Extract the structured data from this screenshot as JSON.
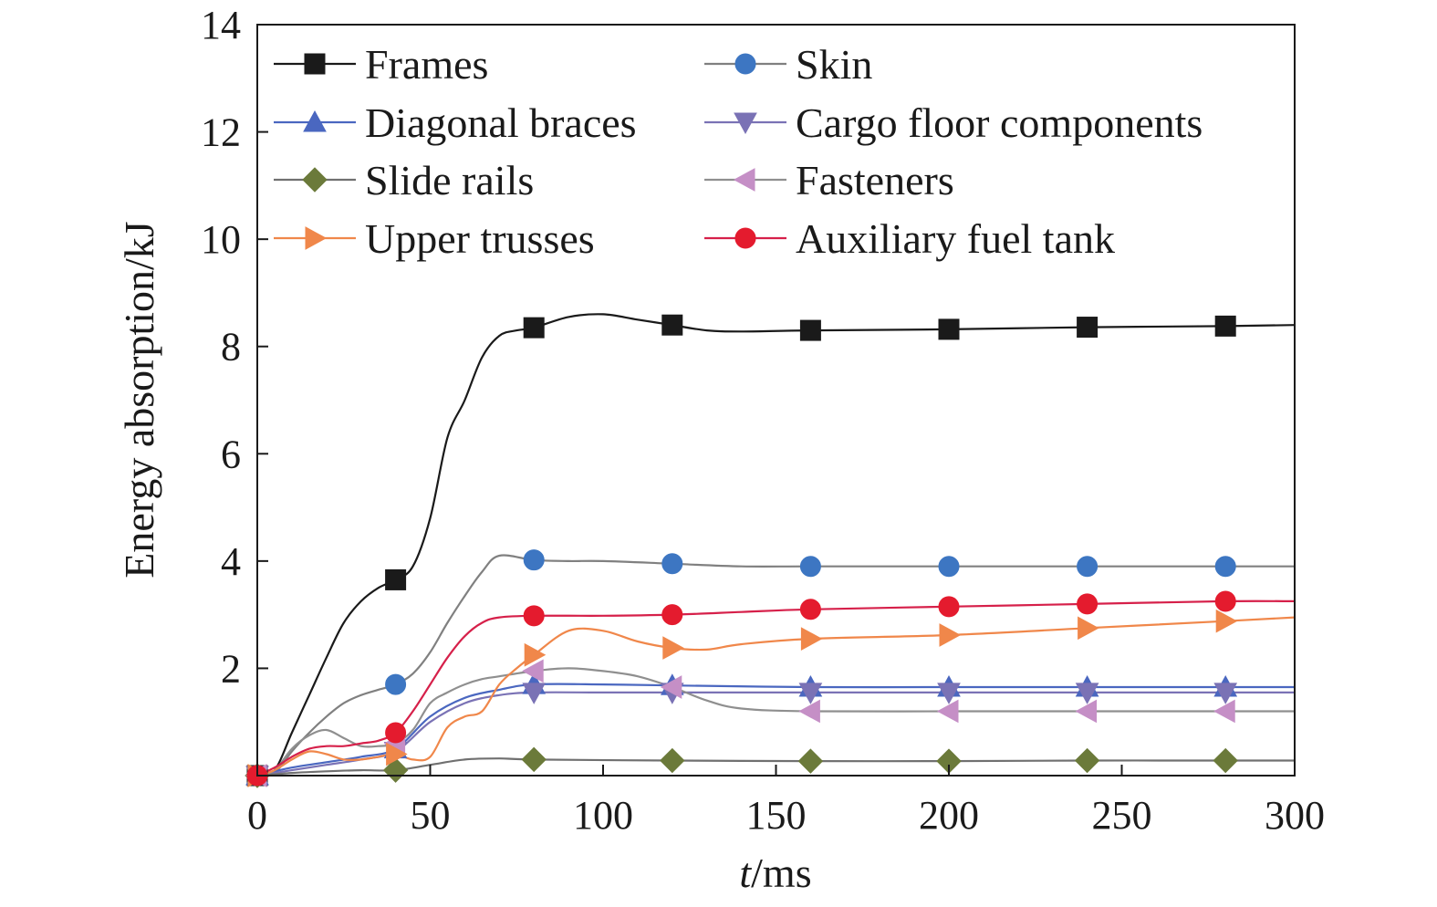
{
  "chart_data": {
    "type": "line",
    "xlabel_italic": "t",
    "xlabel_rest": "/ms",
    "ylabel": "Energy absorption/kJ",
    "xlim": [
      0,
      300
    ],
    "ylim": [
      0,
      14
    ],
    "x_ticks": [
      0,
      50,
      100,
      150,
      200,
      250,
      300
    ],
    "y_ticks": [
      2,
      4,
      6,
      8,
      10,
      12,
      14
    ],
    "x_tick_labels": [
      "0",
      "50",
      "100",
      "150",
      "200",
      "250",
      "300"
    ],
    "y_tick_labels": [
      "2",
      "4",
      "6",
      "8",
      "10",
      "12",
      "14"
    ],
    "grid": false,
    "legend_position": "top",
    "series": [
      {
        "name": "Frames",
        "color": "#1a1a1a",
        "marker": "square",
        "marker_color": "#1a1a1a",
        "x": [
          0,
          5,
          10,
          15,
          20,
          25,
          30,
          35,
          40,
          45,
          50,
          55,
          60,
          65,
          70,
          75,
          80,
          90,
          100,
          110,
          120,
          130,
          140,
          160,
          200,
          240,
          280,
          300
        ],
        "y": [
          0,
          0.1,
          0.8,
          1.5,
          2.2,
          2.85,
          3.25,
          3.5,
          3.65,
          3.9,
          4.8,
          6.3,
          7.0,
          7.8,
          8.2,
          8.3,
          8.35,
          8.55,
          8.6,
          8.5,
          8.4,
          8.3,
          8.28,
          8.3,
          8.32,
          8.36,
          8.38,
          8.4
        ]
      },
      {
        "name": "Skin",
        "color": "#808080",
        "marker": "circle",
        "marker_color": "#3d76c2",
        "x": [
          0,
          5,
          10,
          15,
          20,
          25,
          30,
          35,
          40,
          45,
          50,
          55,
          60,
          65,
          70,
          80,
          90,
          100,
          120,
          140,
          160,
          200,
          240,
          280,
          300
        ],
        "y": [
          0,
          0.05,
          0.45,
          0.8,
          1.1,
          1.35,
          1.5,
          1.6,
          1.7,
          1.9,
          2.3,
          2.85,
          3.35,
          3.8,
          4.1,
          4.02,
          4.0,
          4.0,
          3.95,
          3.9,
          3.9,
          3.9,
          3.9,
          3.9,
          3.9
        ]
      },
      {
        "name": "Diagonal braces",
        "color": "#4a67c0",
        "marker": "triangle-up",
        "marker_color": "#4a67c0",
        "x": [
          0,
          10,
          20,
          30,
          40,
          50,
          60,
          70,
          80,
          100,
          120,
          160,
          200,
          240,
          280,
          300
        ],
        "y": [
          0,
          0.15,
          0.25,
          0.35,
          0.5,
          1.1,
          1.45,
          1.6,
          1.7,
          1.7,
          1.68,
          1.65,
          1.65,
          1.65,
          1.65,
          1.65
        ]
      },
      {
        "name": "Cargo floor components",
        "color": "#7a72b5",
        "marker": "triangle-down",
        "marker_color": "#7a72b5",
        "x": [
          0,
          10,
          20,
          30,
          40,
          50,
          60,
          70,
          80,
          100,
          120,
          160,
          200,
          240,
          280,
          300
        ],
        "y": [
          0,
          0.1,
          0.2,
          0.3,
          0.45,
          1.0,
          1.35,
          1.5,
          1.55,
          1.55,
          1.55,
          1.55,
          1.55,
          1.55,
          1.55,
          1.55
        ]
      },
      {
        "name": "Slide rails",
        "color": "#707070",
        "marker": "diamond",
        "marker_color": "#6b7a3a",
        "x": [
          0,
          10,
          20,
          30,
          40,
          50,
          60,
          70,
          80,
          120,
          160,
          200,
          240,
          280,
          300
        ],
        "y": [
          0,
          0.05,
          0.08,
          0.1,
          0.1,
          0.2,
          0.3,
          0.32,
          0.3,
          0.28,
          0.27,
          0.27,
          0.28,
          0.28,
          0.28
        ]
      },
      {
        "name": "Fasteners",
        "color": "#8f8f8f",
        "marker": "triangle-left",
        "marker_color": "#c58fc6",
        "x": [
          0,
          5,
          10,
          15,
          20,
          25,
          30,
          35,
          40,
          45,
          50,
          55,
          60,
          65,
          70,
          80,
          90,
          100,
          110,
          120,
          130,
          140,
          160,
          200,
          240,
          280,
          300
        ],
        "y": [
          0,
          0.1,
          0.5,
          0.75,
          0.85,
          0.7,
          0.55,
          0.55,
          0.6,
          0.85,
          1.35,
          1.55,
          1.7,
          1.8,
          1.85,
          1.95,
          2.0,
          1.95,
          1.85,
          1.65,
          1.4,
          1.25,
          1.2,
          1.2,
          1.2,
          1.2,
          1.2
        ]
      },
      {
        "name": "Upper trusses",
        "color": "#f0874a",
        "marker": "triangle-right",
        "marker_color": "#f0874a",
        "x": [
          0,
          5,
          10,
          15,
          20,
          25,
          30,
          35,
          40,
          45,
          50,
          55,
          60,
          65,
          70,
          75,
          80,
          90,
          100,
          110,
          120,
          130,
          140,
          160,
          200,
          240,
          280,
          300
        ],
        "y": [
          0,
          0.1,
          0.3,
          0.45,
          0.4,
          0.3,
          0.3,
          0.35,
          0.4,
          0.3,
          0.35,
          0.9,
          1.1,
          1.2,
          1.7,
          2.0,
          2.25,
          2.7,
          2.7,
          2.5,
          2.38,
          2.35,
          2.45,
          2.55,
          2.62,
          2.75,
          2.88,
          2.95
        ]
      },
      {
        "name": "Auxiliary fuel tank",
        "color": "#d6204a",
        "marker": "circle",
        "marker_color": "#e41b2e",
        "x": [
          0,
          5,
          10,
          15,
          20,
          25,
          30,
          35,
          40,
          45,
          50,
          55,
          60,
          65,
          70,
          80,
          100,
          120,
          140,
          160,
          200,
          240,
          280,
          300
        ],
        "y": [
          0,
          0.15,
          0.35,
          0.5,
          0.55,
          0.55,
          0.6,
          0.65,
          0.8,
          1.2,
          1.7,
          2.2,
          2.6,
          2.85,
          2.95,
          2.98,
          2.98,
          3.0,
          3.05,
          3.1,
          3.15,
          3.2,
          3.25,
          3.25
        ]
      }
    ],
    "marker_x": [
      [
        0,
        40,
        80,
        120,
        160,
        200,
        240,
        280
      ],
      [
        0,
        40,
        80,
        120,
        160,
        200,
        240,
        280
      ],
      [
        0,
        40,
        80,
        120,
        160,
        200,
        240,
        280
      ],
      [
        0,
        40,
        80,
        120,
        160,
        200,
        240,
        280
      ],
      [
        0,
        40,
        80,
        120,
        160,
        200,
        240,
        280
      ],
      [
        0,
        40,
        80,
        120,
        160,
        200,
        240,
        280
      ],
      [
        0,
        40,
        80,
        120,
        160,
        200,
        240,
        280
      ],
      [
        0,
        40,
        80,
        120,
        160,
        200,
        240,
        280
      ]
    ]
  }
}
